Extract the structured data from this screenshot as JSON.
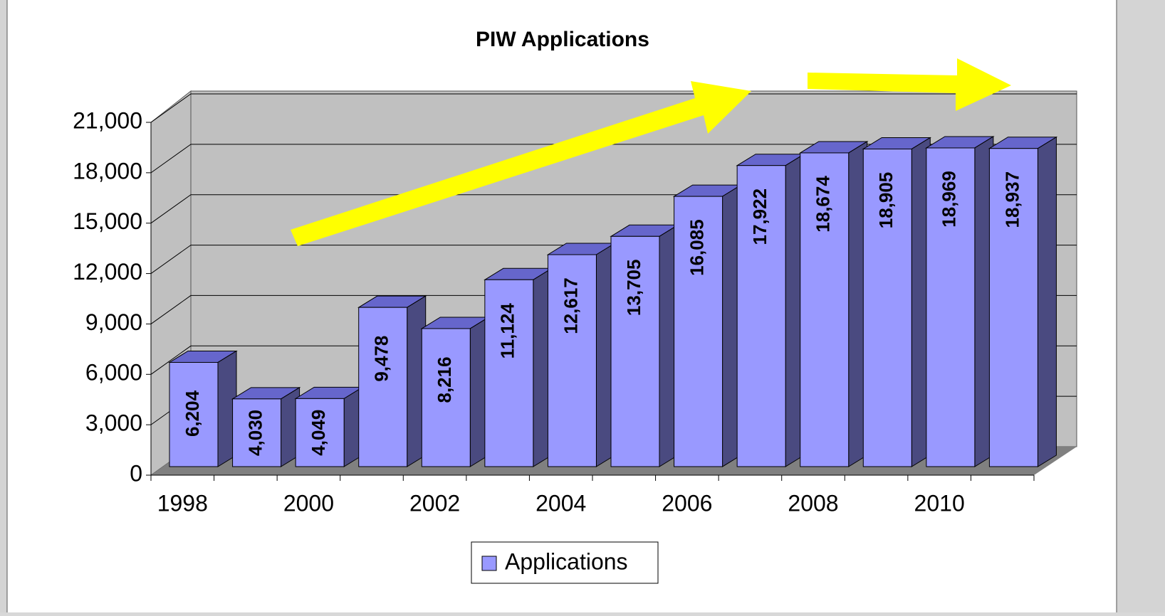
{
  "chart_data": {
    "type": "bar3d",
    "title": "PIW Applications",
    "categories": [
      "1998",
      null,
      "2000",
      null,
      "2002",
      null,
      "2004",
      null,
      "2006",
      null,
      "2008",
      null,
      "2010",
      null
    ],
    "series": [
      {
        "name": "Applications",
        "color": "#9999ff",
        "values": [
          6204,
          4030,
          4049,
          9478,
          8216,
          11124,
          12617,
          13705,
          16085,
          17922,
          18674,
          18905,
          18969,
          18937
        ],
        "value_labels": [
          "6,204",
          "4,030",
          "4,049",
          "9,478",
          "8,216",
          "11,124",
          "12,617",
          "13,705",
          "16,085",
          "17,922",
          "18,674",
          "18,905",
          "18,969",
          "18,937"
        ]
      }
    ],
    "ylim": [
      0,
      21000
    ],
    "yticks": [
      0,
      {
        "value": 3000,
        "label": "3,000"
      },
      {
        "value": 6000,
        "label": "6,000"
      },
      {
        "value": 9000,
        "label": "9,000"
      },
      {
        "value": 12000,
        "label": "12,000"
      },
      {
        "value": 15000,
        "label": "15,000"
      },
      {
        "value": 18000,
        "label": "18,000"
      },
      {
        "value": 21000,
        "label": "21,000"
      }
    ],
    "grid": true,
    "legend": "bottom"
  }
}
